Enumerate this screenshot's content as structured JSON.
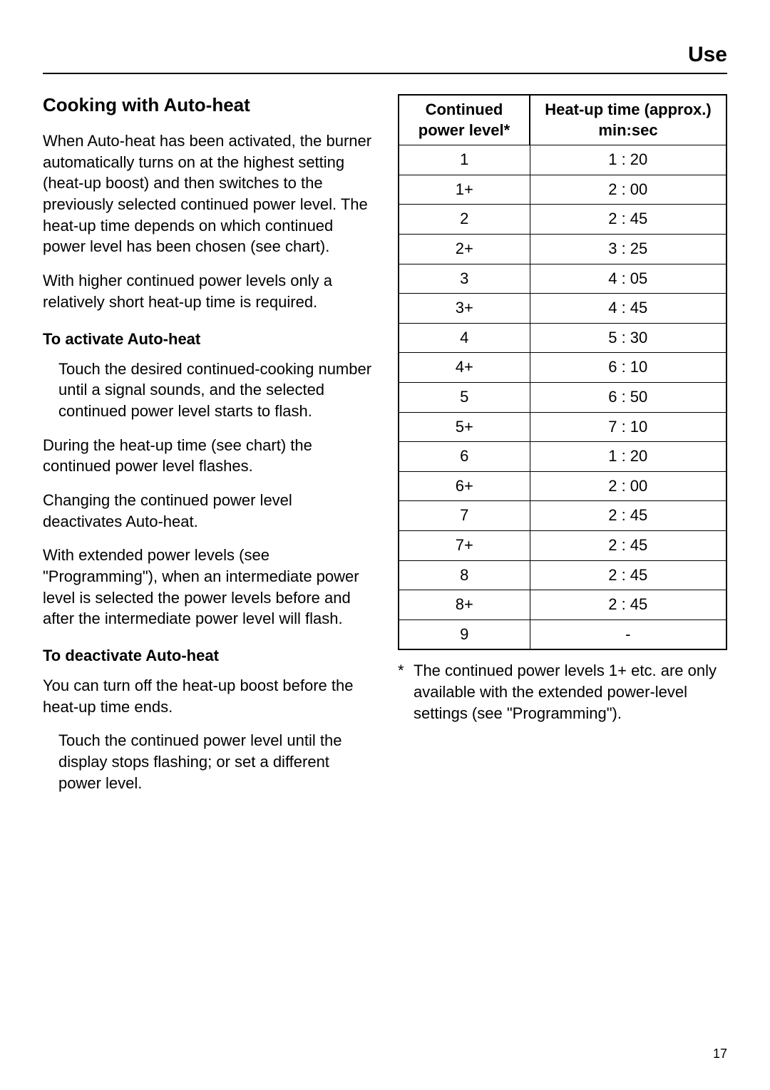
{
  "section_header": "Use",
  "subtitle": "Cooking with Auto-heat",
  "paragraphs": {
    "p1": "When Auto-heat has been activated, the burner automatically turns on at the highest setting (heat-up boost) and then switches to the previously selected continued power level. The heat-up time depends on which continued power level has been chosen (see chart).",
    "p2": "With higher continued power levels only a relatively short heat-up time is required.",
    "activate_heading": "To activate Auto-heat",
    "p3": "Touch the desired continued-cooking number until a signal sounds, and the selected continued power level starts to flash.",
    "p4": "During the heat-up time (see chart) the continued power level flashes.",
    "p5": "Changing the continued power level deactivates Auto-heat.",
    "p6": "With extended power levels (see \"Programming\"), when an intermediate power level is selected the power levels before and after the intermediate power level will flash.",
    "deactivate_heading": "To deactivate Auto-heat",
    "p7": "You can turn off the heat-up boost before the heat-up time ends.",
    "p8": "Touch the continued power level until the display stops flashing; or set a different power level."
  },
  "table": {
    "header_col1": "Continued power level*",
    "header_col2": "Heat-up time (approx.) min:sec",
    "rows": [
      {
        "level": "1",
        "time": "1 : 20"
      },
      {
        "level": "1+",
        "time": "2 : 00"
      },
      {
        "level": "2",
        "time": "2 : 45"
      },
      {
        "level": "2+",
        "time": "3 : 25"
      },
      {
        "level": "3",
        "time": "4 : 05"
      },
      {
        "level": "3+",
        "time": "4 : 45"
      },
      {
        "level": "4",
        "time": "5 : 30"
      },
      {
        "level": "4+",
        "time": "6 : 10"
      },
      {
        "level": "5",
        "time": "6 : 50"
      },
      {
        "level": "5+",
        "time": "7 : 10"
      },
      {
        "level": "6",
        "time": "1 : 20"
      },
      {
        "level": "6+",
        "time": "2 : 00"
      },
      {
        "level": "7",
        "time": "2 : 45"
      },
      {
        "level": "7+",
        "time": "2 : 45"
      },
      {
        "level": "8",
        "time": "2 : 45"
      },
      {
        "level": "8+",
        "time": "2 : 45"
      },
      {
        "level": "9",
        "time": "-"
      }
    ]
  },
  "footnote_marker": "*",
  "footnote_text": "The continued power levels 1+ etc. are only available with the extended power-level settings (see \"Programming\").",
  "page_number": "17"
}
